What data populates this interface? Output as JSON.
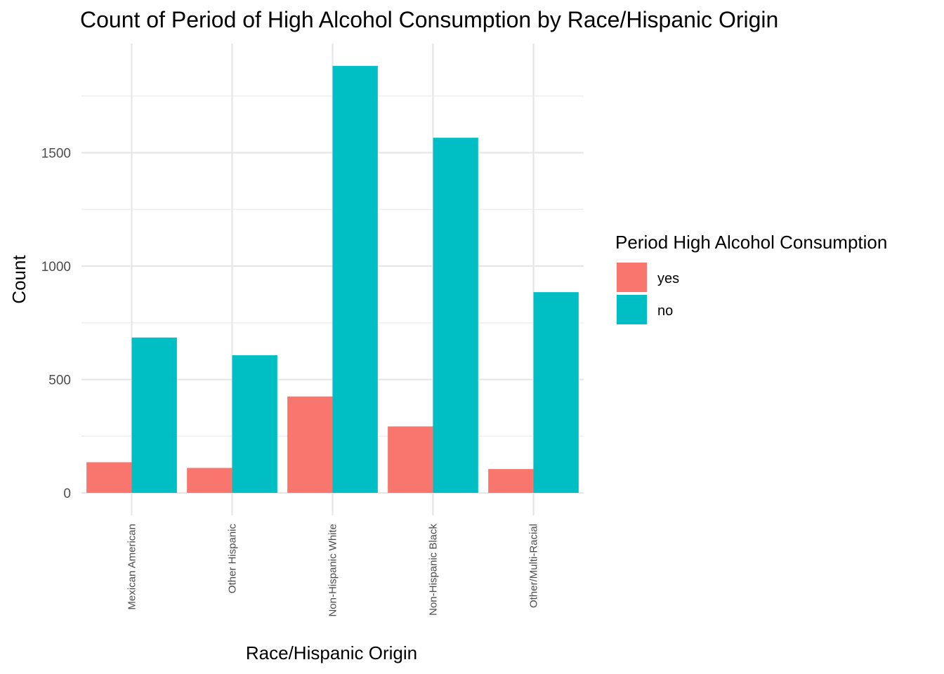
{
  "chart_data": {
    "type": "bar",
    "title": "Count of Period of High Alcohol Consumption by Race/Hispanic Origin",
    "xlabel": "Race/Hispanic Origin",
    "ylabel": "Count",
    "categories": [
      "Mexican American",
      "Other Hispanic",
      "Non-Hispanic White",
      "Non-Hispanic Black",
      "Other/Multi-Racial"
    ],
    "series": [
      {
        "name": "yes",
        "color": "#F8766D",
        "values": [
          135,
          110,
          425,
          293,
          105
        ]
      },
      {
        "name": "no",
        "color": "#00BFC4",
        "values": [
          685,
          607,
          1883,
          1566,
          885
        ]
      }
    ],
    "yticks": [
      0,
      500,
      1000,
      1500
    ],
    "ylim": [
      -80,
      1990
    ],
    "grid": true,
    "legend": {
      "title": "Period High Alcohol Consumption",
      "position": "right"
    }
  }
}
